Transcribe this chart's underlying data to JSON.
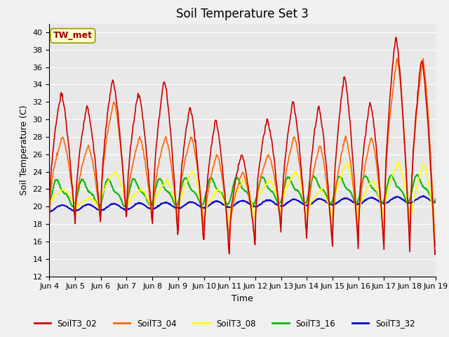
{
  "title": "Soil Temperature Set 3",
  "xlabel": "Time",
  "ylabel": "Soil Temperature (C)",
  "ylim": [
    12,
    41
  ],
  "yticks": [
    12,
    14,
    16,
    18,
    20,
    22,
    24,
    26,
    28,
    30,
    32,
    34,
    36,
    38,
    40
  ],
  "annotation": "TW_met",
  "bg_color": "#e8e8e8",
  "series": {
    "SoilT3_02": {
      "color": "#cc0000",
      "lw": 1.2
    },
    "SoilT3_04": {
      "color": "#ff6600",
      "lw": 1.2
    },
    "SoilT3_08": {
      "color": "#ffff00",
      "lw": 1.2
    },
    "SoilT3_16": {
      "color": "#00bb00",
      "lw": 1.5
    },
    "SoilT3_32": {
      "color": "#0000cc",
      "lw": 1.5
    }
  },
  "xtick_labels": [
    "Jun 4",
    "Jun 5",
    "Jun 6",
    "Jun 7",
    "Jun 8",
    "Jun 9",
    "Jun 10",
    "Jun 11",
    "Jun 12",
    "Jun 13",
    "Jun 14",
    "Jun 15",
    "Jun 16",
    "Jun 17",
    "Jun 18",
    "Jun 19"
  ],
  "legend_ncol": 5,
  "n_days": 15,
  "pts_per_day": 48
}
